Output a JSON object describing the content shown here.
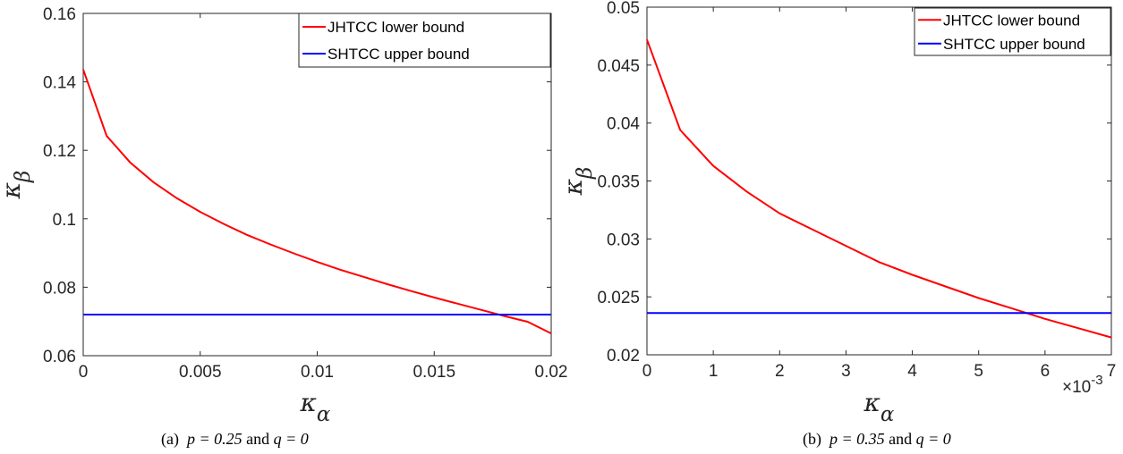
{
  "chart_data": [
    {
      "type": "line",
      "xlabel": "κα",
      "ylabel": "κβ",
      "xlim": [
        0,
        0.02
      ],
      "ylim": [
        0.06,
        0.16
      ],
      "x_ticks": [
        0,
        0.005,
        0.01,
        0.015,
        0.02
      ],
      "x_tick_labels": [
        "0",
        "0.005",
        "0.01",
        "0.015",
        "0.02"
      ],
      "y_ticks": [
        0.06,
        0.08,
        0.1,
        0.12,
        0.14,
        0.16
      ],
      "y_tick_labels": [
        "0.06",
        "0.08",
        "0.1",
        "0.12",
        "0.14",
        "0.16"
      ],
      "legend_position": "top-right",
      "series": [
        {
          "name": "JHTCC lower bound",
          "color": "#ff0000",
          "x": [
            0,
            0.001,
            0.002,
            0.003,
            0.004,
            0.005,
            0.006,
            0.007,
            0.008,
            0.009,
            0.01,
            0.011,
            0.012,
            0.013,
            0.014,
            0.015,
            0.016,
            0.017,
            0.018,
            0.019,
            0.02
          ],
          "y": [
            0.1436,
            0.1242,
            0.1165,
            0.1107,
            0.106,
            0.102,
            0.0985,
            0.0953,
            0.0925,
            0.0899,
            0.0874,
            0.0851,
            0.083,
            0.0809,
            0.0789,
            0.077,
            0.0752,
            0.0734,
            0.0716,
            0.0699,
            0.0665
          ]
        },
        {
          "name": "SHTCC upper bound",
          "color": "#0000ff",
          "x": [
            0,
            0.02
          ],
          "y": [
            0.072,
            0.072
          ]
        }
      ],
      "caption_prefix": "(a)",
      "caption_p": "p = 0.25",
      "caption_and": "and",
      "caption_q": "q = 0"
    },
    {
      "type": "line",
      "xlabel": "κα",
      "ylabel": "κβ",
      "xlim": [
        0,
        0.007
      ],
      "ylim": [
        0.02,
        0.05
      ],
      "x_ticks": [
        0,
        0.001,
        0.002,
        0.003,
        0.004,
        0.005,
        0.006,
        0.007
      ],
      "x_tick_labels": [
        "0",
        "1",
        "2",
        "3",
        "4",
        "5",
        "6",
        "7"
      ],
      "x_exponent": "×10-3",
      "y_ticks": [
        0.02,
        0.025,
        0.03,
        0.035,
        0.04,
        0.045,
        0.05
      ],
      "y_tick_labels": [
        "0.02",
        "0.025",
        "0.03",
        "0.035",
        "0.04",
        "0.045",
        "0.05"
      ],
      "legend_position": "top-right",
      "series": [
        {
          "name": "JHTCC lower bound",
          "color": "#ff0000",
          "x": [
            0,
            0.0005,
            0.001,
            0.0015,
            0.002,
            0.0025,
            0.003,
            0.0035,
            0.004,
            0.0045,
            0.005,
            0.0055,
            0.006,
            0.0065,
            0.007
          ],
          "y": [
            0.0472,
            0.0394,
            0.0363,
            0.0341,
            0.0322,
            0.0308,
            0.0294,
            0.028,
            0.0269,
            0.0259,
            0.0249,
            0.024,
            0.0231,
            0.0223,
            0.0215
          ]
        },
        {
          "name": "SHTCC upper bound",
          "color": "#0000ff",
          "x": [
            0,
            0.007
          ],
          "y": [
            0.0236,
            0.0236
          ]
        }
      ],
      "caption_prefix": "(b)",
      "caption_p": "p = 0.35",
      "caption_and": "and",
      "caption_q": "q = 0"
    }
  ]
}
